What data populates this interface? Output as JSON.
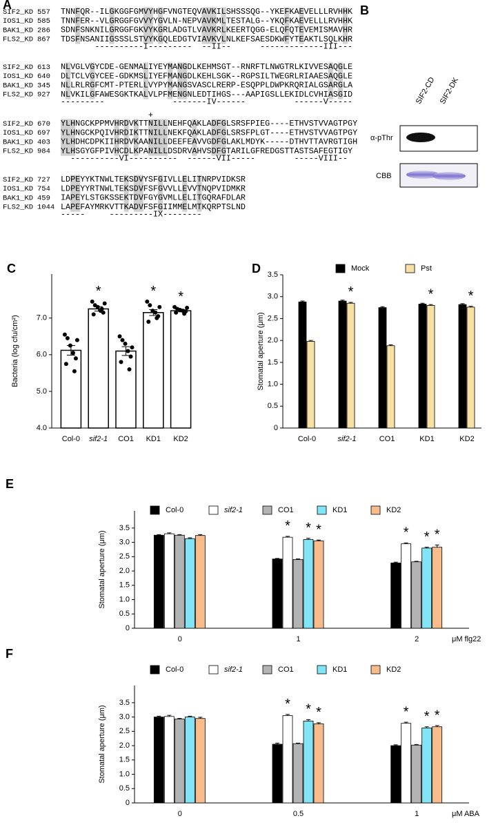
{
  "alignment": {
    "label": "A",
    "blocks": [
      {
        "rows": [
          {
            "name": "SIF2_KD",
            "start": 557,
            "seq": "TNNFQR--ILGKGGFGMVYHGFVNGTEQVAVKILSHSSSQG--YKEFKAEVELLLRVHHK"
          },
          {
            "name": "IOS1_KD",
            "start": 585,
            "seq": "TNNFER--VLGRGGFGVVYYGVLN-NEPVAVKMLTESTALG--YKQFKAEVELLLRVHHK"
          },
          {
            "name": "BAK1_KD",
            "start": 286,
            "seq": "SDNFSNKNILGRGGFGKVYKGRLADGTLVAVKRLKEERTQGG-ELQFQTEVEMISMAVHR"
          },
          {
            "name": "FLS2_KD",
            "start": 867,
            "seq": "TDSFNSANIIGSSSLSTVYKGQLEDGTVIAVKVLNLKEFSAESDKWFYTEAKTLSQLKHR"
          }
        ],
        "annotation": "       ----------I---------  --II--      -------------III---"
      },
      {
        "rows": [
          {
            "name": "SIF2_KD",
            "start": 613,
            "seq": "NLVGLVGYCDE-GENMALIYEYMANGDLKEHMSGT--RNRFTLNWGTRLKIVVESAQGLE"
          },
          {
            "name": "IOS1_KD",
            "start": 640,
            "seq": "DLTCLVGYCEE-GDKMSLIYEFMANGDLKEHLSGK--RGPSILTWEGRLRIAAESAQGLE"
          },
          {
            "name": "BAK1_KD",
            "start": 345,
            "seq": "NLLRLRGFCMT-PTERLLVYPYMANGSVASCLRERP-ESQPPLDWPKRQRIALGSARGLA"
          },
          {
            "name": "FLS2_KD",
            "start": 927,
            "seq": "NLVKILGFAWESGKTKALVLPFMENGNLEDTIHGS---AAPIGSLLEKIDLCVHIASGID"
          }
        ],
        "annotation": "---------              -------IV------          ------V-----"
      },
      {
        "marker": "+",
        "rows": [
          {
            "name": "SIF2_KD",
            "start": 670,
            "seq": "YLHNGCKPPMVHRDVKTTNILLNEHFQAKLADFGLSRSFPIEG----ETHVSTVVAGTPGY"
          },
          {
            "name": "IOS1_KD",
            "start": 697,
            "seq": "YLHNGCKPQIVHRDIKTTNILLNEKFQAKLADFGLSRSFPLGT----ETHVSTVVAGTPGY"
          },
          {
            "name": "BAK1_KD",
            "start": 403,
            "seq": "YLHDHCDPKIIHRDVKAANILLDEEFEAVVGDFGLAKLMDYK-----DTHVTTAVRGTIGH"
          },
          {
            "name": "FLS2_KD",
            "start": 984,
            "seq": "YLHSGYGFPIVHCDLKPANILLDSDRVAHVSDFGTARILGFREDGSTTASTSAFEGTIGY"
          }
        ],
        "annotation": "  ----------VI----------  ------VII-----        -----VIII--"
      },
      {
        "rows": [
          {
            "name": "SIF2_KD",
            "start": 727,
            "seq": "LDPEYYKTNWLTEKSDVYSFGIVLLELITNRPVIDKSR"
          },
          {
            "name": "IOS1_KD",
            "start": 754,
            "seq": "LDPEYYRTNWLTEKSDVFSFGVVLLEVVTNQPVIDMKR"
          },
          {
            "name": "BAK1_KD",
            "start": 459,
            "seq": "IAPEYLSTGKSSEKTDVFGYGVMLLELITGQRAFDLAR"
          },
          {
            "name": "FLS2_KD",
            "start": 1044,
            "seq": "LAPEFAYMRKVTTKADVFSFGIIMMELMTKQRPTSLND"
          }
        ],
        "annotation": "-----     ---------IX--------"
      }
    ]
  },
  "blot": {
    "label": "B",
    "lanes": [
      "SIF2-CD",
      "SIF2-DK"
    ],
    "rows": [
      "α-pThr",
      "CBB"
    ]
  },
  "chart_data": [
    {
      "type": "bar",
      "label": "C",
      "ylabel": "Bacteria (log cfu/cm²)",
      "categories": [
        "Col-0",
        "sif2-1",
        "CO1",
        "KD1",
        "KD2"
      ],
      "values": [
        6.12,
        7.25,
        6.1,
        7.15,
        7.2
      ],
      "errors": [
        0.13,
        0.06,
        0.12,
        0.08,
        0.03
      ],
      "color": "#ffffff",
      "points": [
        [
          6.55,
          6.45,
          6.25,
          6.05,
          5.9,
          5.75,
          5.55,
          6.4
        ],
        [
          7.45,
          7.35,
          7.3,
          7.2,
          7.15,
          7.1,
          7.25,
          7.4
        ],
        [
          6.5,
          6.4,
          6.3,
          6.1,
          5.95,
          5.8,
          5.6,
          6.2
        ],
        [
          7.45,
          7.35,
          7.2,
          7.15,
          7.05,
          6.9,
          7.0,
          7.3
        ],
        [
          7.3,
          7.25,
          7.22,
          7.2,
          7.18,
          7.15,
          7.12,
          7.28
        ]
      ],
      "annotations": [
        null,
        "*",
        null,
        "*",
        "*"
      ],
      "ylim": [
        4,
        8.2
      ],
      "yticks": [
        {
          "value": 4,
          "label": "4.0"
        },
        {
          "value": 5,
          "label": "5.0"
        },
        {
          "value": 6,
          "label": "6.0"
        },
        {
          "value": 7,
          "label": "7.0"
        }
      ]
    },
    {
      "type": "grouped-bar",
      "label": "D",
      "ylabel": "Stomatal aperture (μm)",
      "categories": [
        "Col-0",
        "sif2-1",
        "CO1",
        "KD1",
        "KD2"
      ],
      "series": [
        {
          "name": "Mock",
          "color": "#000000",
          "values": [
            2.88,
            2.9,
            2.75,
            2.83,
            2.82
          ],
          "errors": [
            0.02,
            0.02,
            0.02,
            0.02,
            0.02
          ],
          "annotations": [
            null,
            null,
            null,
            null,
            null
          ]
        },
        {
          "name": "Pst",
          "color": "#f7e0a3",
          "values": [
            1.98,
            2.85,
            1.88,
            2.8,
            2.76
          ],
          "errors": [
            0.02,
            0.02,
            0.02,
            0.02,
            0.02
          ],
          "annotations": [
            null,
            "*",
            null,
            "*",
            "*"
          ]
        }
      ],
      "ylim": [
        0,
        3.5
      ],
      "yticks": [
        0,
        0.5,
        {
          "value": 1,
          "label": "1.0"
        },
        {
          "value": 1.5,
          "label": "1.5"
        },
        {
          "value": 2,
          "label": "2.0"
        },
        {
          "value": 2.5,
          "label": "2.5"
        },
        {
          "value": 3,
          "label": "3.0"
        },
        {
          "value": 3.5,
          "label": "3.5"
        }
      ]
    },
    {
      "type": "grouped-bar",
      "label": "E",
      "ylabel": "Stomatal aperture (μm)",
      "xlabel": "μM flg22",
      "categories": [
        "0",
        "1",
        "2"
      ],
      "series": [
        {
          "name": "Col-0",
          "color": "#000000",
          "values": [
            3.25,
            2.42,
            2.28
          ],
          "errors": [
            0.02,
            0.02,
            0.03
          ],
          "annotations": [
            null,
            null,
            null
          ]
        },
        {
          "name": "sif2-1",
          "color": "#ffffff",
          "values": [
            3.3,
            3.18,
            2.95
          ],
          "errors": [
            0.03,
            0.03,
            0.03
          ],
          "annotations": [
            null,
            "*",
            "*"
          ]
        },
        {
          "name": "CO1",
          "color": "#b3b3b3",
          "values": [
            3.25,
            2.4,
            2.32
          ],
          "errors": [
            0.02,
            0.02,
            0.02
          ],
          "annotations": [
            null,
            null,
            null
          ]
        },
        {
          "name": "KD1",
          "color": "#83e4f5",
          "values": [
            3.13,
            3.1,
            2.8
          ],
          "errors": [
            0.03,
            0.04,
            0.03
          ],
          "annotations": [
            null,
            "*",
            "*"
          ]
        },
        {
          "name": "KD2",
          "color": "#f7bb8c",
          "values": [
            3.24,
            3.05,
            2.83
          ],
          "errors": [
            0.03,
            0.03,
            0.08
          ],
          "annotations": [
            null,
            "*",
            "*"
          ]
        }
      ],
      "ylim": [
        0,
        4.1
      ],
      "yticks": [
        0,
        0.5,
        {
          "value": 1,
          "label": "1.0"
        },
        {
          "value": 1.5,
          "label": "1.5"
        },
        {
          "value": 2,
          "label": "2.0"
        },
        {
          "value": 2.5,
          "label": "2.5"
        },
        {
          "value": 3,
          "label": "3.0"
        },
        {
          "value": 3.5,
          "label": "3.5"
        }
      ]
    },
    {
      "type": "grouped-bar",
      "label": "F",
      "ylabel": "Stomatal aperture (μm)",
      "xlabel": "μM ABA",
      "categories": [
        "0",
        "0.5",
        "1"
      ],
      "series": [
        {
          "name": "Col-0",
          "color": "#000000",
          "values": [
            3.0,
            2.05,
            2.0
          ],
          "errors": [
            0.03,
            0.04,
            0.03
          ],
          "annotations": [
            null,
            null,
            null
          ]
        },
        {
          "name": "sif2-1",
          "color": "#ffffff",
          "values": [
            3.02,
            3.05,
            2.78
          ],
          "errors": [
            0.04,
            0.04,
            0.04
          ],
          "annotations": [
            null,
            "*",
            "*"
          ]
        },
        {
          "name": "CO1",
          "color": "#b3b3b3",
          "values": [
            2.93,
            2.07,
            2.02
          ],
          "errors": [
            0.02,
            0.02,
            0.02
          ],
          "annotations": [
            null,
            null,
            null
          ]
        },
        {
          "name": "KD1",
          "color": "#83e4f5",
          "values": [
            3.0,
            2.86,
            2.62
          ],
          "errors": [
            0.03,
            0.05,
            0.04
          ],
          "annotations": [
            null,
            "*",
            "*"
          ]
        },
        {
          "name": "KD2",
          "color": "#f7bb8c",
          "values": [
            2.95,
            2.76,
            2.66
          ],
          "errors": [
            0.04,
            0.04,
            0.04
          ],
          "annotations": [
            null,
            "*",
            "*"
          ]
        }
      ],
      "ylim": [
        0,
        4.1
      ],
      "yticks": [
        0,
        0.5,
        {
          "value": 1,
          "label": "1.0"
        },
        {
          "value": 1.5,
          "label": "1.5"
        },
        {
          "value": 2,
          "label": "2.0"
        },
        {
          "value": 2.5,
          "label": "2.5"
        },
        {
          "value": 3,
          "label": "3.0"
        },
        {
          "value": 3.5,
          "label": "3.5"
        }
      ]
    }
  ]
}
